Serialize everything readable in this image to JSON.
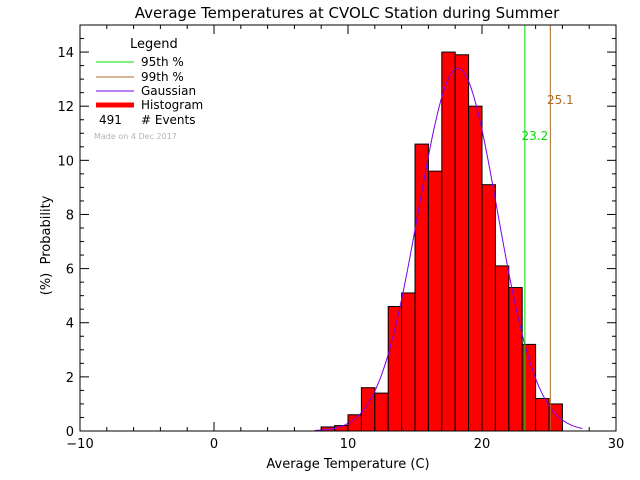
{
  "chart_data": {
    "type": "bar",
    "title": "Average Temperatures at CVOLC Station during Summer",
    "xlabel": "Average Temperature (C)",
    "ylabel_line1": "Probability",
    "ylabel_line2": "(%)",
    "xlim": [
      -10,
      30
    ],
    "ylim": [
      0,
      15
    ],
    "xticks": [
      -10,
      0,
      10,
      20,
      30
    ],
    "yticks": [
      0,
      2,
      4,
      6,
      8,
      10,
      12,
      14
    ],
    "grid": false,
    "bin_width": 1,
    "bins": [
      {
        "x0": 8,
        "value": 0.15
      },
      {
        "x0": 9,
        "value": 0.2
      },
      {
        "x0": 10,
        "value": 0.6
      },
      {
        "x0": 11,
        "value": 1.6
      },
      {
        "x0": 12,
        "value": 1.4
      },
      {
        "x0": 13,
        "value": 4.6
      },
      {
        "x0": 14,
        "value": 5.1
      },
      {
        "x0": 15,
        "value": 10.6
      },
      {
        "x0": 16,
        "value": 9.6
      },
      {
        "x0": 17,
        "value": 14.0
      },
      {
        "x0": 18,
        "value": 13.9
      },
      {
        "x0": 19,
        "value": 12.0
      },
      {
        "x0": 20,
        "value": 9.1
      },
      {
        "x0": 21,
        "value": 6.1
      },
      {
        "x0": 22,
        "value": 5.3
      },
      {
        "x0": 23,
        "value": 3.2
      },
      {
        "x0": 24,
        "value": 1.2
      },
      {
        "x0": 25,
        "value": 1.0
      }
    ],
    "gaussian": {
      "mean": 18.2,
      "sigma": 2.95,
      "peak": 13.4,
      "x_range": [
        7.5,
        27.5
      ]
    },
    "percentiles": [
      {
        "name": "95th %",
        "value": 23.2,
        "label": "23.2",
        "color": "#00dd00"
      },
      {
        "name": "99th %",
        "value": 25.1,
        "label": "25.1",
        "color": "#b06a2a"
      }
    ],
    "legend": {
      "title": "Legend",
      "placement": "top-left",
      "items": [
        {
          "label": "95th %",
          "color": "#00dd00"
        },
        {
          "label": "99th %",
          "color": "#b06a2a"
        },
        {
          "label": "Gaussian",
          "color": "#7a00e6"
        },
        {
          "label": "Histogram",
          "color": "#ff0000"
        }
      ],
      "events_count": "491",
      "events_label": "# Events",
      "made_on": "Made on 4 Dec 2017"
    },
    "colors": {
      "histogram": "#ff0000",
      "gaussian": "#7a00e6",
      "made_on": "#b4b4b4",
      "axes": "#000000"
    }
  }
}
